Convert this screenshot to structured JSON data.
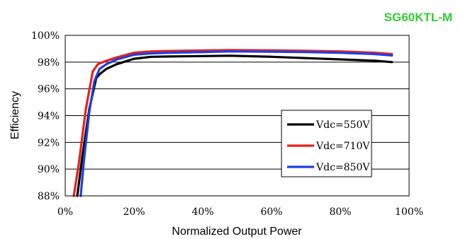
{
  "chart_data": {
    "type": "line",
    "title": "SG60KTL-M",
    "title_color": "#33cc33",
    "xlabel": "Normalized Output Power",
    "ylabel": "Efficiency",
    "xlim": [
      0,
      100
    ],
    "ylim": [
      88,
      100
    ],
    "x_ticks": [
      "0%",
      "20%",
      "40%",
      "60%",
      "80%",
      "100%"
    ],
    "y_ticks": [
      "88%",
      "90%",
      "92%",
      "94%",
      "96%",
      "98%",
      "100%"
    ],
    "grid": "horizontal",
    "legend_position": "right",
    "series": [
      {
        "name": "Vdc=550V",
        "color": "#000000",
        "x": [
          3.5,
          5,
          7,
          9,
          10,
          12,
          15,
          20,
          25,
          30,
          40,
          48,
          60,
          70,
          80,
          90,
          95
        ],
        "y": [
          88,
          91.0,
          94.5,
          96.8,
          97.1,
          97.5,
          97.85,
          98.25,
          98.4,
          98.42,
          98.45,
          98.48,
          98.4,
          98.3,
          98.2,
          98.1,
          98.0
        ]
      },
      {
        "name": "Vdc=710V",
        "color": "#e8201c",
        "x": [
          2.5,
          4,
          6,
          8,
          9.5,
          12,
          15,
          20,
          25,
          30,
          40,
          48,
          60,
          70,
          80,
          90,
          95
        ],
        "y": [
          88,
          90.5,
          94.5,
          97.3,
          97.85,
          98.1,
          98.35,
          98.7,
          98.8,
          98.83,
          98.87,
          98.9,
          98.88,
          98.85,
          98.8,
          98.7,
          98.6
        ]
      },
      {
        "name": "Vdc=850V",
        "color": "#1f3fe0",
        "x": [
          4.5,
          5.5,
          7,
          8.5,
          10,
          12,
          15,
          20,
          25,
          30,
          40,
          48,
          60,
          70,
          80,
          90,
          95
        ],
        "y": [
          88,
          90.8,
          94.3,
          96.6,
          97.5,
          97.85,
          98.2,
          98.55,
          98.65,
          98.7,
          98.75,
          98.8,
          98.78,
          98.75,
          98.7,
          98.6,
          98.5
        ]
      }
    ]
  }
}
